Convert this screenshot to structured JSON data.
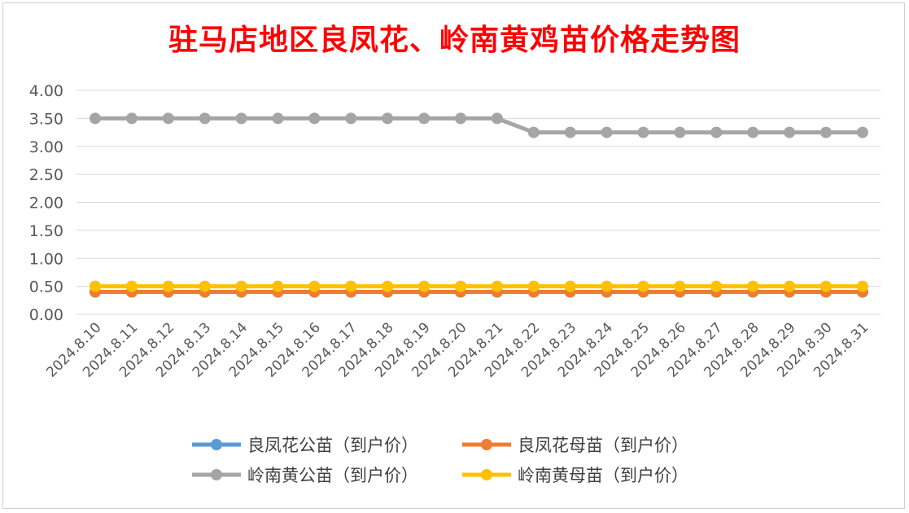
{
  "chart_data": {
    "type": "line",
    "title": "驻马店地区良凤花、岭南黄鸡苗价格走势图",
    "xlabel": "",
    "ylabel": "",
    "ylim": [
      0,
      4
    ],
    "y_ticks": [
      "0.00",
      "0.50",
      "1.00",
      "1.50",
      "2.00",
      "2.50",
      "3.00",
      "3.50",
      "4.00"
    ],
    "grid": true,
    "legend_position": "bottom",
    "categories": [
      "2024.8.10",
      "2024.8.11",
      "2024.8.12",
      "2024.8.13",
      "2024.8.14",
      "2024.8.15",
      "2024.8.16",
      "2024.8.17",
      "2024.8.18",
      "2024.8.19",
      "2024.8.20",
      "2024.8.21",
      "2024.8.22",
      "2024.8.23",
      "2024.8.24",
      "2024.8.25",
      "2024.8.26",
      "2024.8.27",
      "2024.8.28",
      "2024.8.29",
      "2024.8.30",
      "2024.8.31"
    ],
    "series": [
      {
        "name": "良凤花公苗（到户价）",
        "color": "#5b9bd5",
        "values": [
          0.4,
          0.4,
          0.4,
          0.4,
          0.4,
          0.4,
          0.4,
          0.4,
          0.4,
          0.4,
          0.4,
          0.4,
          0.4,
          0.4,
          0.4,
          0.4,
          0.4,
          0.4,
          0.4,
          0.4,
          0.4,
          0.4
        ]
      },
      {
        "name": "良凤花母苗（到户价）",
        "color": "#ed7d31",
        "values": [
          0.4,
          0.4,
          0.4,
          0.4,
          0.4,
          0.4,
          0.4,
          0.4,
          0.4,
          0.4,
          0.4,
          0.4,
          0.4,
          0.4,
          0.4,
          0.4,
          0.4,
          0.4,
          0.4,
          0.4,
          0.4,
          0.4
        ]
      },
      {
        "name": "岭南黄公苗（到户价）",
        "color": "#a5a5a5",
        "values": [
          3.5,
          3.5,
          3.5,
          3.5,
          3.5,
          3.5,
          3.5,
          3.5,
          3.5,
          3.5,
          3.5,
          3.5,
          3.25,
          3.25,
          3.25,
          3.25,
          3.25,
          3.25,
          3.25,
          3.25,
          3.25,
          3.25
        ]
      },
      {
        "name": "岭南黄母苗（到户价）",
        "color": "#ffc000",
        "values": [
          0.5,
          0.5,
          0.5,
          0.5,
          0.5,
          0.5,
          0.5,
          0.5,
          0.5,
          0.5,
          0.5,
          0.5,
          0.5,
          0.5,
          0.5,
          0.5,
          0.5,
          0.5,
          0.5,
          0.5,
          0.5,
          0.5
        ]
      }
    ]
  }
}
